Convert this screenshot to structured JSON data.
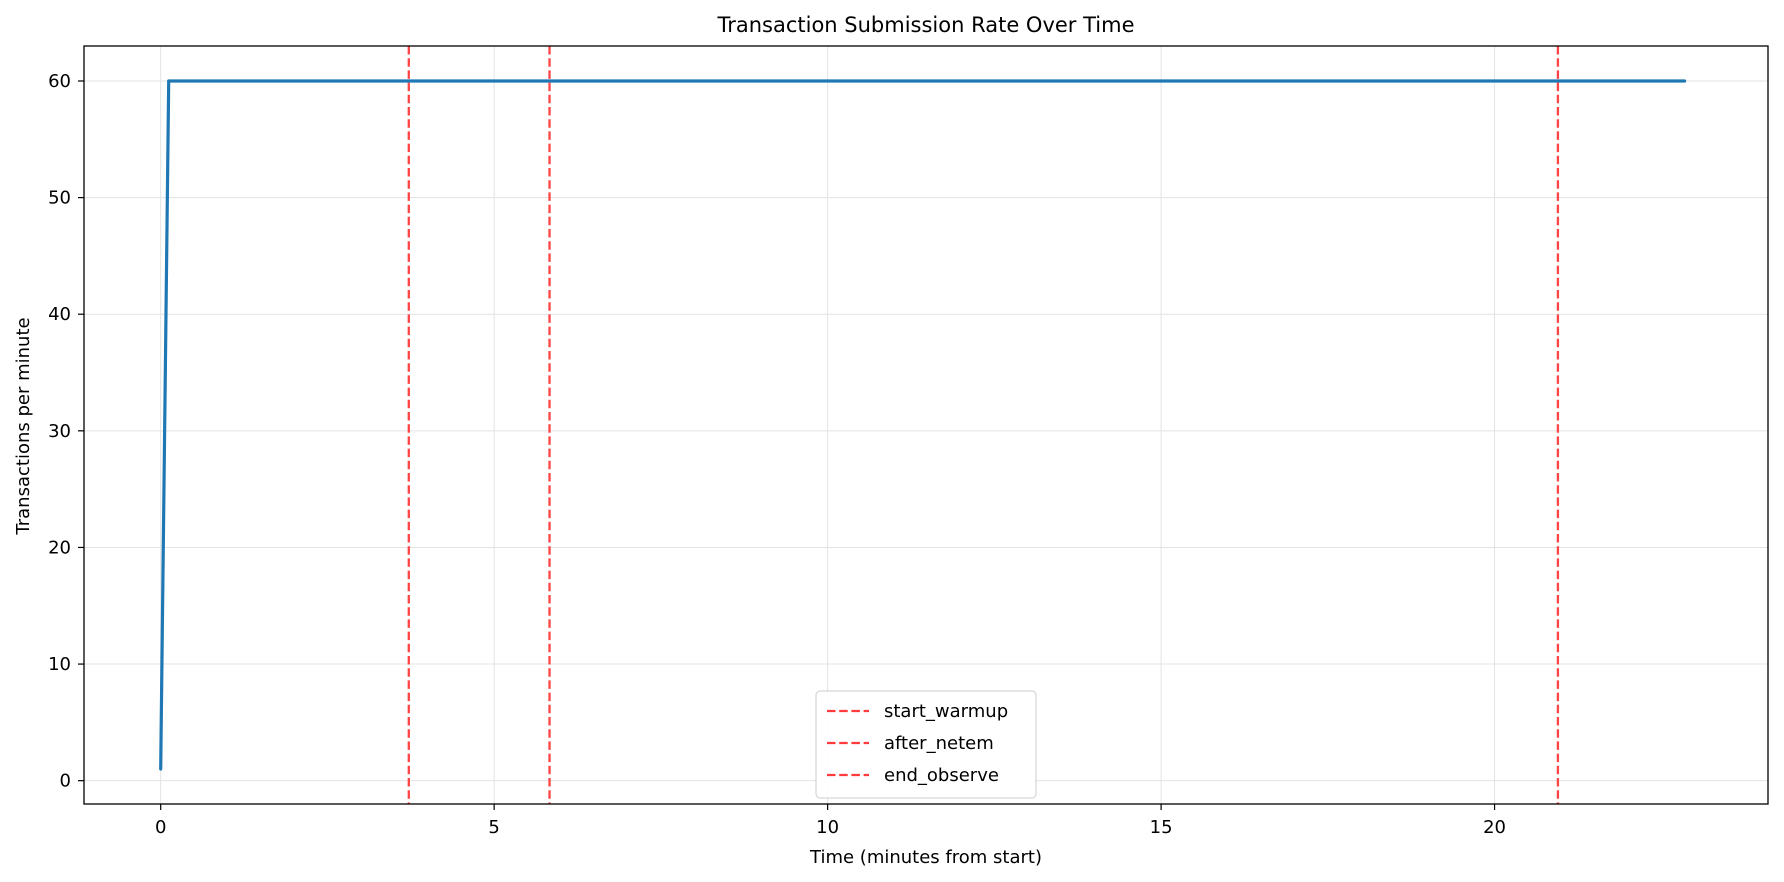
{
  "chart_data": {
    "type": "line",
    "title": "Transaction Submission Rate Over Time",
    "xlabel": "Time (minutes from start)",
    "ylabel": "Transactions per minute",
    "xlim": [
      -1.15,
      24.1
    ],
    "ylim": [
      -2,
      63
    ],
    "xticks": [
      0,
      5,
      10,
      15,
      20
    ],
    "yticks": [
      0,
      10,
      20,
      30,
      40,
      50,
      60
    ],
    "grid": true,
    "series": [
      {
        "name": "",
        "color": "#1f77b4",
        "x": [
          0.0,
          0.12,
          22.85
        ],
        "y": [
          1,
          60,
          60
        ]
      }
    ],
    "markers": [
      {
        "name": "start_warmup",
        "x": 3.72,
        "color": "#ff3b3b",
        "style": "dashed"
      },
      {
        "name": "after_netem",
        "x": 5.83,
        "color": "#ff3b3b",
        "style": "dashed"
      },
      {
        "name": "end_observe",
        "x": 20.95,
        "color": "#ff3b3b",
        "style": "dashed"
      }
    ],
    "legend": {
      "placement": "lower-center",
      "entries": [
        "start_warmup",
        "after_netem",
        "end_observe"
      ]
    }
  }
}
